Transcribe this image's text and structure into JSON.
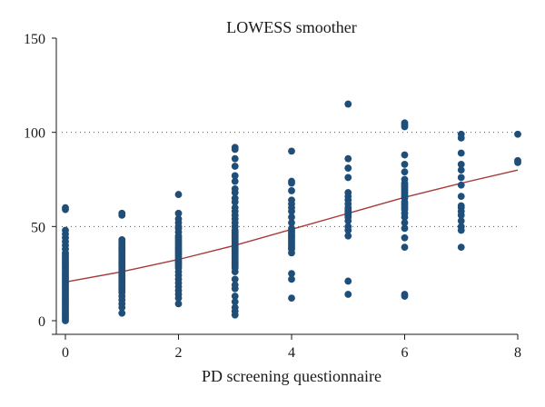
{
  "chart_data": {
    "type": "scatter",
    "title": "LOWESS smoother",
    "xlabel": "PD screening questionnaire",
    "ylabel": "",
    "xlim": [
      0,
      8
    ],
    "ylim": [
      0,
      150
    ],
    "x_ticks": [
      0,
      2,
      4,
      6,
      8
    ],
    "y_ticks": [
      0,
      50,
      100,
      150
    ],
    "grid": "horizontal dotted at 50, 100",
    "point_color": "#1f4e79",
    "line_color": "#a83a3a",
    "series": [
      {
        "type": "scatter",
        "groups": [
          {
            "x": 0,
            "y": [
              0,
              1,
              2,
              3,
              4,
              5,
              6,
              7,
              8,
              9,
              10,
              11,
              12,
              13,
              14,
              15,
              16,
              17,
              18,
              19,
              20,
              21,
              22,
              23,
              24,
              25,
              26,
              27,
              28,
              29,
              30,
              31,
              32,
              33,
              34,
              35,
              36,
              38,
              40,
              42,
              44,
              46,
              48,
              59,
              60
            ]
          },
          {
            "x": 1,
            "y": [
              4,
              7,
              9,
              11,
              13,
              15,
              16,
              17,
              18,
              19,
              20,
              21,
              22,
              23,
              24,
              25,
              26,
              27,
              28,
              29,
              30,
              31,
              32,
              33,
              34,
              35,
              36,
              37,
              38,
              39,
              40,
              41,
              42,
              43,
              56,
              57
            ]
          },
          {
            "x": 2,
            "y": [
              9,
              12,
              14,
              16,
              18,
              20,
              22,
              24,
              26,
              28,
              29,
              30,
              31,
              32,
              33,
              34,
              35,
              36,
              37,
              38,
              39,
              40,
              41,
              42,
              43,
              44,
              45,
              47,
              49,
              50,
              52,
              54,
              57,
              67
            ]
          },
          {
            "x": 3,
            "y": [
              3,
              5,
              7,
              10,
              13,
              17,
              19,
              22,
              26,
              28,
              29,
              30,
              31,
              32,
              33,
              34,
              35,
              36,
              37,
              38,
              39,
              40,
              41,
              42,
              43,
              44,
              45,
              46,
              47,
              48,
              50,
              52,
              54,
              56,
              58,
              60,
              63,
              65,
              68,
              70,
              74,
              77,
              82,
              86,
              91,
              92
            ]
          },
          {
            "x": 4,
            "y": [
              12,
              22,
              25,
              36,
              38,
              39,
              40,
              41,
              42,
              43,
              44,
              45,
              46,
              47,
              48,
              49,
              52,
              55,
              58,
              60,
              62,
              64,
              69,
              73,
              74,
              90
            ]
          },
          {
            "x": 5,
            "y": [
              14,
              21,
              45,
              48,
              50,
              53,
              55,
              56,
              57,
              58,
              59,
              60,
              62,
              64,
              66,
              68,
              76,
              81,
              86,
              115
            ]
          },
          {
            "x": 6,
            "y": [
              13,
              14,
              39,
              44,
              49,
              52,
              55,
              57,
              59,
              60,
              61,
              62,
              63,
              65,
              66,
              67,
              68,
              69,
              70,
              71,
              72,
              73,
              75,
              79,
              83,
              88,
              103,
              104,
              105
            ]
          },
          {
            "x": 7,
            "y": [
              39,
              48,
              50,
              53,
              56,
              58,
              60,
              61,
              66,
              72,
              76,
              80,
              83,
              89,
              97,
              99
            ]
          },
          {
            "x": 8,
            "y": [
              84,
              85,
              99
            ]
          }
        ]
      },
      {
        "type": "line",
        "x": [
          0,
          1,
          2,
          3,
          4,
          5,
          6,
          7,
          8
        ],
        "y": [
          20.5,
          26,
          32.5,
          40,
          48.5,
          57,
          65.5,
          73,
          80
        ]
      }
    ]
  }
}
